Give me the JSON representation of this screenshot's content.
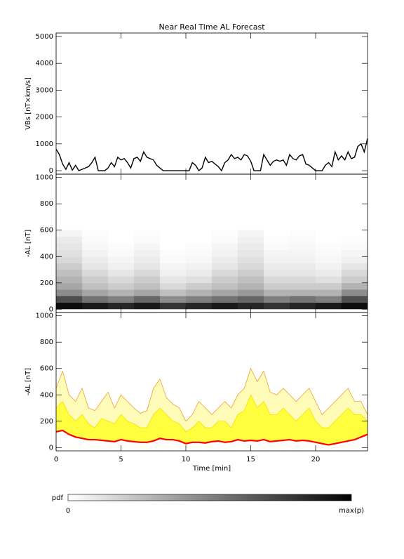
{
  "chart_data": [
    {
      "type": "line",
      "title": "Near Real Time AL Forecast",
      "y_label": "VBs [nT×km/s]",
      "color": "#000000",
      "xlim": [
        0,
        24
      ],
      "xticks": [
        0,
        5,
        10,
        15,
        20
      ],
      "show_xtick_labels": false,
      "ylim": [
        -130,
        5130
      ],
      "yticks": [
        0,
        1000,
        2000,
        3000,
        4000,
        5000
      ],
      "x": [
        0,
        0.25,
        0.5,
        0.75,
        1,
        1.25,
        1.5,
        1.75,
        2,
        2.25,
        2.5,
        2.75,
        3,
        3.25,
        3.5,
        3.75,
        4,
        4.25,
        4.5,
        4.75,
        5,
        5.25,
        5.5,
        5.75,
        6,
        6.25,
        6.5,
        6.75,
        7,
        7.25,
        7.5,
        7.75,
        8,
        8.25,
        8.5,
        8.75,
        9,
        9.25,
        9.5,
        9.75,
        10,
        10.25,
        10.5,
        10.75,
        11,
        11.25,
        11.5,
        11.75,
        12,
        12.25,
        12.5,
        12.75,
        13,
        13.25,
        13.5,
        13.75,
        14,
        14.25,
        14.5,
        14.75,
        15,
        15.25,
        15.5,
        15.75,
        16,
        16.25,
        16.5,
        16.75,
        17,
        17.25,
        17.5,
        17.75,
        18,
        18.25,
        18.5,
        18.75,
        19,
        19.25,
        19.5,
        19.75,
        20,
        20.25,
        20.5,
        20.75,
        21,
        21.25,
        21.5,
        21.75,
        22,
        22.25,
        22.5,
        22.75,
        23,
        23.25,
        23.5,
        23.75,
        24
      ],
      "values": [
        800,
        600,
        250,
        50,
        300,
        20,
        200,
        0,
        50,
        100,
        150,
        300,
        500,
        0,
        0,
        0,
        100,
        300,
        150,
        500,
        400,
        450,
        300,
        100,
        450,
        500,
        350,
        700,
        500,
        450,
        400,
        200,
        100,
        0,
        0,
        0,
        0,
        0,
        0,
        0,
        0,
        0,
        300,
        200,
        0,
        100,
        500,
        300,
        350,
        250,
        150,
        0,
        300,
        400,
        600,
        450,
        500,
        400,
        600,
        550,
        350,
        0,
        0,
        0,
        600,
        400,
        200,
        350,
        400,
        350,
        400,
        200,
        600,
        450,
        400,
        550,
        600,
        250,
        200,
        100,
        0,
        0,
        0,
        200,
        300,
        150,
        700,
        400,
        550,
        400,
        700,
        450,
        500,
        900,
        1000,
        700,
        1200
      ]
    },
    {
      "type": "heatmap",
      "y_label": "-AL [nT]",
      "xlim": [
        0,
        24
      ],
      "xticks": [
        0,
        5,
        10,
        15,
        20
      ],
      "show_xtick_labels": false,
      "ylim": [
        -25,
        1025
      ],
      "yticks": [
        0,
        200,
        400,
        600,
        800,
        1000
      ],
      "x_bins": [
        0,
        2,
        4,
        6,
        8,
        10,
        12,
        14,
        16,
        18,
        20,
        22,
        24
      ],
      "y_bins": [
        0,
        50,
        100,
        150,
        200,
        250,
        300,
        350,
        400,
        450,
        500,
        550,
        600
      ],
      "zlim": [
        0,
        1
      ],
      "z": [
        [
          0.95,
          0.9,
          0.85,
          0.9,
          0.8,
          0.85,
          0.9,
          0.85,
          0.8,
          0.85,
          0.9,
          0.95
        ],
        [
          0.7,
          0.55,
          0.5,
          0.6,
          0.45,
          0.5,
          0.55,
          0.6,
          0.5,
          0.55,
          0.5,
          0.7
        ],
        [
          0.45,
          0.35,
          0.3,
          0.35,
          0.25,
          0.3,
          0.35,
          0.4,
          0.3,
          0.3,
          0.3,
          0.45
        ],
        [
          0.35,
          0.25,
          0.2,
          0.25,
          0.15,
          0.2,
          0.25,
          0.3,
          0.2,
          0.2,
          0.2,
          0.3
        ],
        [
          0.3,
          0.2,
          0.15,
          0.2,
          0.1,
          0.12,
          0.2,
          0.25,
          0.15,
          0.15,
          0.12,
          0.2
        ],
        [
          0.25,
          0.15,
          0.1,
          0.15,
          0.06,
          0.08,
          0.15,
          0.2,
          0.1,
          0.1,
          0.08,
          0.15
        ],
        [
          0.2,
          0.1,
          0.06,
          0.1,
          0.04,
          0.05,
          0.1,
          0.15,
          0.08,
          0.08,
          0.05,
          0.1
        ],
        [
          0.15,
          0.08,
          0.04,
          0.08,
          0.02,
          0.03,
          0.08,
          0.12,
          0.05,
          0.05,
          0.03,
          0.06
        ],
        [
          0.12,
          0.05,
          0.02,
          0.06,
          0.01,
          0.02,
          0.05,
          0.1,
          0.04,
          0.04,
          0.02,
          0.04
        ],
        [
          0.1,
          0.03,
          0.01,
          0.04,
          0,
          0.01,
          0.04,
          0.08,
          0.02,
          0.03,
          0.01,
          0.02
        ],
        [
          0.08,
          0.02,
          0,
          0.02,
          0,
          0,
          0.02,
          0.06,
          0.01,
          0.02,
          0,
          0.01
        ],
        [
          0.04,
          0.01,
          0,
          0.01,
          0,
          0,
          0.01,
          0.04,
          0,
          0.01,
          0,
          0
        ]
      ],
      "colorbar": {
        "label": "pdf",
        "min_label": "0",
        "max_label": "max(p)"
      }
    },
    {
      "type": "band",
      "y_label": "-AL [nT]",
      "x_label": "Time [min]",
      "xlim": [
        0,
        24
      ],
      "xticks": [
        0,
        5,
        10,
        15,
        20
      ],
      "show_xtick_labels": true,
      "ylim": [
        -25,
        1025
      ],
      "yticks": [
        0,
        200,
        400,
        600,
        800,
        1000
      ],
      "x": [
        0,
        0.5,
        1,
        1.5,
        2,
        2.5,
        3,
        3.5,
        4,
        4.5,
        5,
        5.5,
        6,
        6.5,
        7,
        7.5,
        8,
        8.5,
        9,
        9.5,
        10,
        10.5,
        11,
        11.5,
        12,
        12.5,
        13,
        13.5,
        14,
        14.5,
        15,
        15.5,
        16,
        16.5,
        17,
        17.5,
        18,
        18.5,
        19,
        19.5,
        20,
        20.5,
        21,
        21.5,
        22,
        22.5,
        23,
        23.5,
        24
      ],
      "series": [
        {
          "color": "#f0a030",
          "fill": "#fffbb8",
          "values": [
            450,
            580,
            400,
            350,
            450,
            300,
            280,
            350,
            420,
            300,
            400,
            350,
            300,
            260,
            280,
            450,
            520,
            380,
            330,
            300,
            200,
            250,
            350,
            300,
            250,
            300,
            350,
            300,
            400,
            450,
            600,
            500,
            580,
            420,
            400,
            450,
            400,
            350,
            400,
            450,
            350,
            250,
            300,
            350,
            400,
            450,
            350,
            350,
            250
          ]
        },
        {
          "color": "#f5e000",
          "fill": "#ffff40",
          "values": [
            300,
            350,
            250,
            200,
            250,
            180,
            150,
            220,
            200,
            180,
            250,
            200,
            180,
            150,
            150,
            250,
            300,
            250,
            200,
            180,
            120,
            150,
            200,
            150,
            150,
            200,
            200,
            150,
            250,
            280,
            400,
            300,
            350,
            250,
            250,
            300,
            250,
            200,
            250,
            300,
            200,
            150,
            150,
            200,
            250,
            300,
            250,
            250,
            200
          ]
        },
        {
          "color": "#ff0000",
          "fill": "#ffffff",
          "values": [
            120,
            130,
            100,
            80,
            70,
            60,
            60,
            55,
            50,
            45,
            60,
            50,
            45,
            40,
            40,
            50,
            70,
            60,
            60,
            50,
            30,
            40,
            40,
            35,
            45,
            50,
            40,
            45,
            60,
            50,
            55,
            50,
            60,
            45,
            50,
            55,
            60,
            50,
            55,
            50,
            40,
            30,
            20,
            30,
            40,
            50,
            60,
            80,
            100
          ]
        }
      ]
    }
  ]
}
